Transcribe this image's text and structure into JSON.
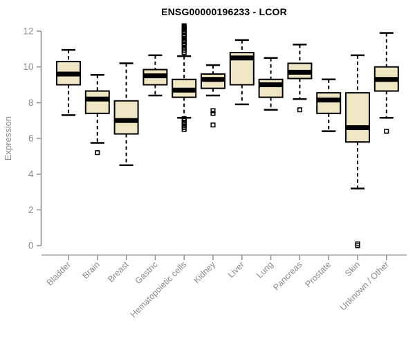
{
  "chart_data": {
    "type": "boxplot",
    "title": "ENSG00000196233 - LCOR",
    "xlabel": "",
    "ylabel": "Expression",
    "ylim": [
      0,
      12
    ],
    "yticks": [
      0,
      2,
      4,
      6,
      8,
      10,
      12
    ],
    "grid": false,
    "legend": null,
    "categories": [
      "Bladder",
      "Brain",
      "Breast",
      "Gastric",
      "Hematopoietic cells",
      "Kidney",
      "Liver",
      "Lung",
      "Pancreas",
      "Prostate",
      "Skin",
      "Unknown / Other"
    ],
    "series": [
      {
        "category": "Bladder",
        "whisker_low": 7.3,
        "q1": 9.0,
        "median": 9.6,
        "q3": 10.3,
        "whisker_high": 10.95,
        "outliers": []
      },
      {
        "category": "Brain",
        "whisker_low": 5.75,
        "q1": 7.4,
        "median": 8.2,
        "q3": 8.65,
        "whisker_high": 9.55,
        "outliers": [
          5.2
        ]
      },
      {
        "category": "Breast",
        "whisker_low": 4.5,
        "q1": 6.25,
        "median": 7.0,
        "q3": 8.1,
        "whisker_high": 10.2,
        "outliers": []
      },
      {
        "category": "Gastric",
        "whisker_low": 8.4,
        "q1": 9.0,
        "median": 9.5,
        "q3": 9.85,
        "whisker_high": 10.65,
        "outliers": []
      },
      {
        "category": "Hematopoietic cells",
        "whisker_low": 7.15,
        "q1": 8.3,
        "median": 8.7,
        "q3": 9.3,
        "whisker_high": 10.6,
        "outliers": [
          12.3,
          12.25,
          12.2,
          12.15,
          12.1,
          12.0,
          11.95,
          11.9,
          11.8,
          11.75,
          11.7,
          11.6,
          11.5,
          11.45,
          11.4,
          11.3,
          11.25,
          11.2,
          11.1,
          11.0,
          10.9,
          10.8,
          7.1,
          7.05,
          7.0,
          6.9,
          6.85,
          6.8,
          6.7,
          6.6,
          6.5
        ]
      },
      {
        "category": "Kidney",
        "whisker_low": 8.4,
        "q1": 8.8,
        "median": 9.3,
        "q3": 9.6,
        "whisker_high": 10.1,
        "outliers": [
          7.55,
          7.4,
          6.75
        ]
      },
      {
        "category": "Liver",
        "whisker_low": 7.9,
        "q1": 9.0,
        "median": 10.5,
        "q3": 10.8,
        "whisker_high": 11.5,
        "outliers": []
      },
      {
        "category": "Lung",
        "whisker_low": 7.6,
        "q1": 8.3,
        "median": 9.0,
        "q3": 9.3,
        "whisker_high": 10.5,
        "outliers": []
      },
      {
        "category": "Pancreas",
        "whisker_low": 8.2,
        "q1": 9.35,
        "median": 9.7,
        "q3": 10.2,
        "whisker_high": 11.25,
        "outliers": [
          7.6
        ]
      },
      {
        "category": "Prostate",
        "whisker_low": 6.4,
        "q1": 7.4,
        "median": 8.15,
        "q3": 8.55,
        "whisker_high": 9.3,
        "outliers": []
      },
      {
        "category": "Skin",
        "whisker_low": 3.2,
        "q1": 5.8,
        "median": 6.6,
        "q3": 8.55,
        "whisker_high": 10.65,
        "outliers": [
          0.1,
          0.0
        ]
      },
      {
        "category": "Unknown / Other",
        "whisker_low": 7.15,
        "q1": 8.65,
        "median": 9.3,
        "q3": 10.0,
        "whisker_high": 11.9,
        "outliers": [
          6.4
        ]
      }
    ],
    "colors": {
      "box_fill": "#EFE6C4",
      "box_stroke": "#000000",
      "median": "#000000",
      "axis": "#8b8b8b",
      "title": "#000000",
      "background": "#ffffff"
    }
  }
}
